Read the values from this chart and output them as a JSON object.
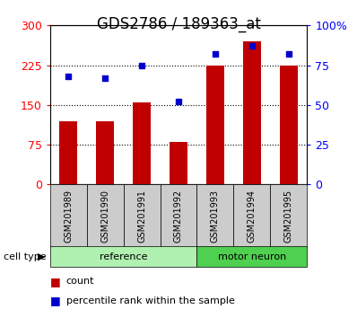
{
  "title": "GDS2786 / 189363_at",
  "categories": [
    "GSM201989",
    "GSM201990",
    "GSM201991",
    "GSM201992",
    "GSM201993",
    "GSM201994",
    "GSM201995"
  ],
  "bar_values": [
    120,
    120,
    155,
    80,
    225,
    270,
    225
  ],
  "dot_values": [
    68,
    67,
    75,
    52,
    82,
    87,
    82
  ],
  "bar_color": "#c00000",
  "dot_color": "#0000cc",
  "left_ylim": [
    0,
    300
  ],
  "right_ylim": [
    0,
    100
  ],
  "left_yticks": [
    0,
    75,
    150,
    225,
    300
  ],
  "right_yticks": [
    0,
    25,
    50,
    75,
    100
  ],
  "right_yticklabels": [
    "0",
    "25",
    "50",
    "75",
    "100%"
  ],
  "grid_values": [
    75,
    150,
    225
  ],
  "ref_count": 4,
  "motor_count": 3,
  "group_labels": [
    "reference",
    "motor neuron"
  ],
  "ref_color": "#b0f0b0",
  "motor_color": "#50d050",
  "xlabel_area_color": "#cccccc",
  "cell_type_label": "cell type",
  "legend_count_label": "count",
  "legend_percentile_label": "percentile rank within the sample",
  "title_fontsize": 12,
  "tick_fontsize": 9,
  "category_fontsize": 7,
  "legend_fontsize": 8
}
